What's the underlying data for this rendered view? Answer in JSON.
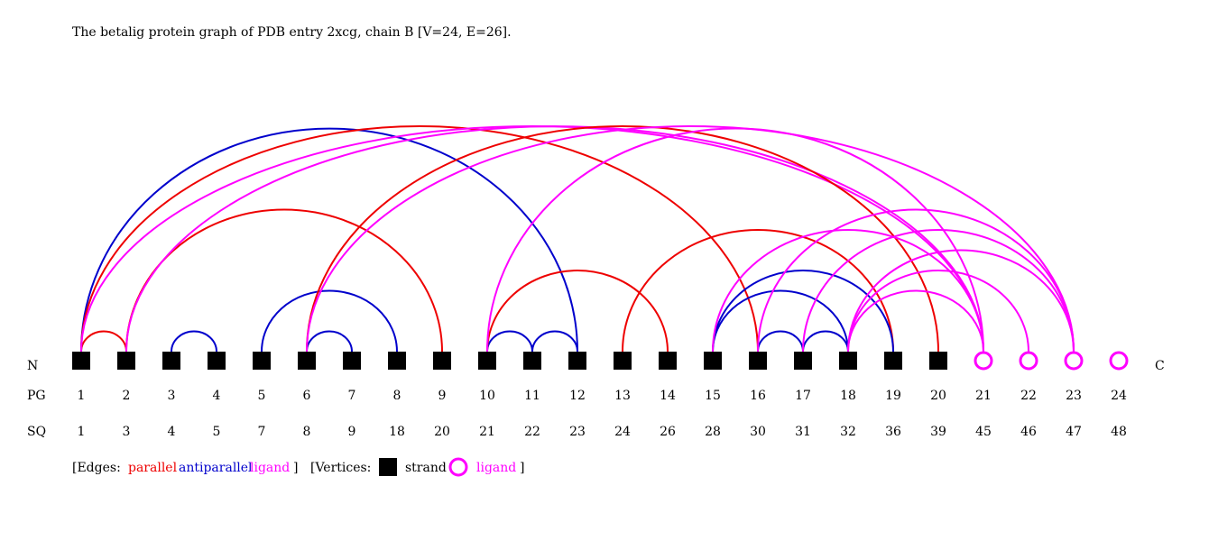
{
  "title": "The betalig protein graph of PDB entry 2xcg, chain B [V=24, E=26].",
  "row_labels": {
    "n_terminus": "N",
    "c_terminus": "C",
    "pg": "PG",
    "sq": "SQ"
  },
  "colors": {
    "parallel": "#ee0000",
    "antiparallel": "#0000cc",
    "ligand": "#ff00ff",
    "strand": "#000000"
  },
  "vertices": [
    {
      "pg": "1",
      "sq": "1",
      "type": "strand"
    },
    {
      "pg": "2",
      "sq": "3",
      "type": "strand"
    },
    {
      "pg": "3",
      "sq": "4",
      "type": "strand"
    },
    {
      "pg": "4",
      "sq": "5",
      "type": "strand"
    },
    {
      "pg": "5",
      "sq": "7",
      "type": "strand"
    },
    {
      "pg": "6",
      "sq": "8",
      "type": "strand"
    },
    {
      "pg": "7",
      "sq": "9",
      "type": "strand"
    },
    {
      "pg": "8",
      "sq": "18",
      "type": "strand"
    },
    {
      "pg": "9",
      "sq": "20",
      "type": "strand"
    },
    {
      "pg": "10",
      "sq": "21",
      "type": "strand"
    },
    {
      "pg": "11",
      "sq": "22",
      "type": "strand"
    },
    {
      "pg": "12",
      "sq": "23",
      "type": "strand"
    },
    {
      "pg": "13",
      "sq": "24",
      "type": "strand"
    },
    {
      "pg": "14",
      "sq": "26",
      "type": "strand"
    },
    {
      "pg": "15",
      "sq": "28",
      "type": "strand"
    },
    {
      "pg": "16",
      "sq": "30",
      "type": "strand"
    },
    {
      "pg": "17",
      "sq": "31",
      "type": "strand"
    },
    {
      "pg": "18",
      "sq": "32",
      "type": "strand"
    },
    {
      "pg": "19",
      "sq": "36",
      "type": "strand"
    },
    {
      "pg": "20",
      "sq": "39",
      "type": "strand"
    },
    {
      "pg": "21",
      "sq": "45",
      "type": "ligand"
    },
    {
      "pg": "22",
      "sq": "46",
      "type": "ligand"
    },
    {
      "pg": "23",
      "sq": "47",
      "type": "ligand"
    },
    {
      "pg": "24",
      "sq": "48",
      "type": "ligand"
    }
  ],
  "edges": [
    {
      "from": 1,
      "to": 2,
      "type": "parallel"
    },
    {
      "from": 1,
      "to": 12,
      "type": "antiparallel"
    },
    {
      "from": 1,
      "to": 16,
      "type": "parallel"
    },
    {
      "from": 1,
      "to": 21,
      "type": "ligand"
    },
    {
      "from": 2,
      "to": 9,
      "type": "parallel"
    },
    {
      "from": 2,
      "to": 21,
      "type": "ligand"
    },
    {
      "from": 3,
      "to": 4,
      "type": "antiparallel"
    },
    {
      "from": 5,
      "to": 8,
      "type": "antiparallel"
    },
    {
      "from": 6,
      "to": 7,
      "type": "antiparallel"
    },
    {
      "from": 6,
      "to": 20,
      "type": "parallel"
    },
    {
      "from": 6,
      "to": 23,
      "type": "ligand"
    },
    {
      "from": 10,
      "to": 11,
      "type": "antiparallel"
    },
    {
      "from": 10,
      "to": 14,
      "type": "parallel"
    },
    {
      "from": 10,
      "to": 21,
      "type": "ligand"
    },
    {
      "from": 11,
      "to": 12,
      "type": "antiparallel"
    },
    {
      "from": 13,
      "to": 19,
      "type": "parallel"
    },
    {
      "from": 15,
      "to": 18,
      "type": "antiparallel"
    },
    {
      "from": 15,
      "to": 19,
      "type": "antiparallel"
    },
    {
      "from": 15,
      "to": 21,
      "type": "ligand"
    },
    {
      "from": 16,
      "to": 17,
      "type": "antiparallel"
    },
    {
      "from": 16,
      "to": 23,
      "type": "ligand"
    },
    {
      "from": 17,
      "to": 18,
      "type": "antiparallel"
    },
    {
      "from": 17,
      "to": 23,
      "type": "ligand"
    },
    {
      "from": 18,
      "to": 21,
      "type": "ligand"
    },
    {
      "from": 18,
      "to": 22,
      "type": "ligand"
    },
    {
      "from": 18,
      "to": 23,
      "type": "ligand"
    }
  ],
  "legend": {
    "edges_label": "[Edges:",
    "parallel": "parallel",
    "antiparallel": "antiparallel",
    "ligand": "ligand",
    "close_edges": "]",
    "vertices_label": "[Vertices:",
    "strand": "strand",
    "ligand_vertex": "ligand",
    "close_vertices": "]"
  }
}
